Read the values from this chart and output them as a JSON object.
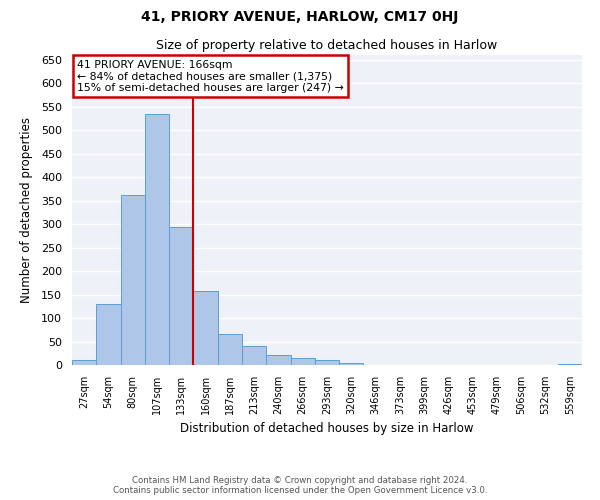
{
  "title": "41, PRIORY AVENUE, HARLOW, CM17 0HJ",
  "subtitle": "Size of property relative to detached houses in Harlow",
  "xlabel": "Distribution of detached houses by size in Harlow",
  "ylabel": "Number of detached properties",
  "bar_labels": [
    "27sqm",
    "54sqm",
    "80sqm",
    "107sqm",
    "133sqm",
    "160sqm",
    "187sqm",
    "213sqm",
    "240sqm",
    "266sqm",
    "293sqm",
    "320sqm",
    "346sqm",
    "373sqm",
    "399sqm",
    "426sqm",
    "453sqm",
    "479sqm",
    "506sqm",
    "532sqm",
    "559sqm"
  ],
  "bar_values": [
    10,
    130,
    362,
    535,
    293,
    157,
    65,
    40,
    22,
    15,
    10,
    5,
    0,
    0,
    0,
    0,
    0,
    0,
    0,
    0,
    2
  ],
  "bar_color": "#aec6e8",
  "bar_edge_color": "#5a9fd4",
  "vline_color": "#cc0000",
  "vline_position": 4.5,
  "ylim": [
    0,
    660
  ],
  "yticks": [
    0,
    50,
    100,
    150,
    200,
    250,
    300,
    350,
    400,
    450,
    500,
    550,
    600,
    650
  ],
  "annotation_title": "41 PRIORY AVENUE: 166sqm",
  "annotation_line1": "← 84% of detached houses are smaller (1,375)",
  "annotation_line2": "15% of semi-detached houses are larger (247) →",
  "annotation_box_color": "#cc0000",
  "footer_line1": "Contains HM Land Registry data © Crown copyright and database right 2024.",
  "footer_line2": "Contains public sector information licensed under the Open Government Licence v3.0.",
  "background_color": "#eef2f8"
}
